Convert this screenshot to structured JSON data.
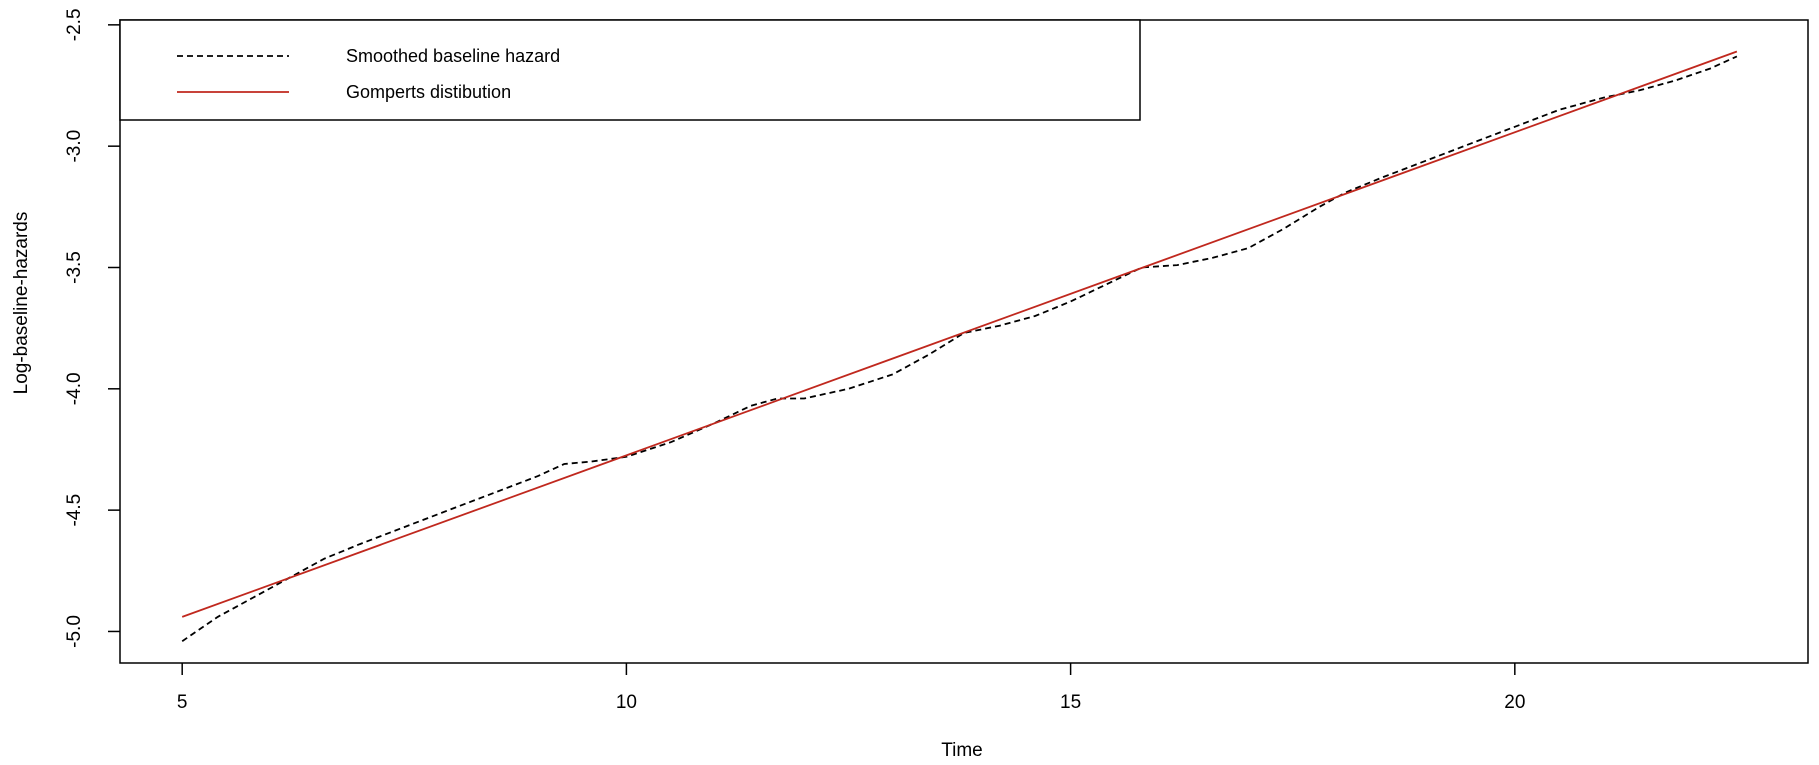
{
  "chart_data": {
    "type": "line",
    "xlabel": "Time",
    "ylabel": "Log-baseline-hazards",
    "xlim": [
      4.3,
      23.3
    ],
    "ylim": [
      -5.13,
      -2.48
    ],
    "xticks": [
      5,
      10,
      15,
      20
    ],
    "xtick_labels": [
      "5",
      "10",
      "15",
      "20"
    ],
    "yticks": [
      -5.0,
      -4.5,
      -4.0,
      -3.5,
      -3.0,
      -2.5
    ],
    "ytick_labels": [
      "-5.0",
      "-4.5",
      "-4.0",
      "-3.5",
      "-3.0",
      "-2.5"
    ],
    "grid": false,
    "legend_position": "top-left",
    "series": [
      {
        "name": "Smoothed baseline hazard",
        "color": "#000000",
        "style": "dashed",
        "x": [
          5.0,
          5.4,
          5.8,
          6.2,
          6.6,
          7.0,
          7.5,
          8.0,
          8.5,
          9.0,
          9.3,
          9.6,
          10.0,
          10.5,
          11.0,
          11.4,
          11.7,
          12.0,
          12.5,
          13.0,
          13.4,
          13.8,
          14.2,
          14.6,
          15.0,
          15.4,
          15.8,
          16.2,
          16.6,
          17.0,
          17.4,
          17.8,
          18.1,
          18.5,
          19.0,
          19.5,
          20.0,
          20.5,
          21.0,
          21.4,
          21.8,
          22.2,
          22.5
        ],
        "y": [
          -5.04,
          -4.94,
          -4.86,
          -4.78,
          -4.7,
          -4.64,
          -4.57,
          -4.5,
          -4.43,
          -4.36,
          -4.31,
          -4.3,
          -4.28,
          -4.22,
          -4.14,
          -4.07,
          -4.04,
          -4.04,
          -4.0,
          -3.94,
          -3.86,
          -3.77,
          -3.74,
          -3.7,
          -3.64,
          -3.57,
          -3.5,
          -3.49,
          -3.46,
          -3.42,
          -3.34,
          -3.25,
          -3.19,
          -3.13,
          -3.06,
          -2.99,
          -2.92,
          -2.85,
          -2.8,
          -2.77,
          -2.73,
          -2.68,
          -2.63
        ]
      },
      {
        "name": "Gomperts distibution",
        "color": "#c0281e",
        "style": "solid",
        "x": [
          5.0,
          22.5
        ],
        "y": [
          -4.94,
          -2.61
        ]
      }
    ]
  }
}
